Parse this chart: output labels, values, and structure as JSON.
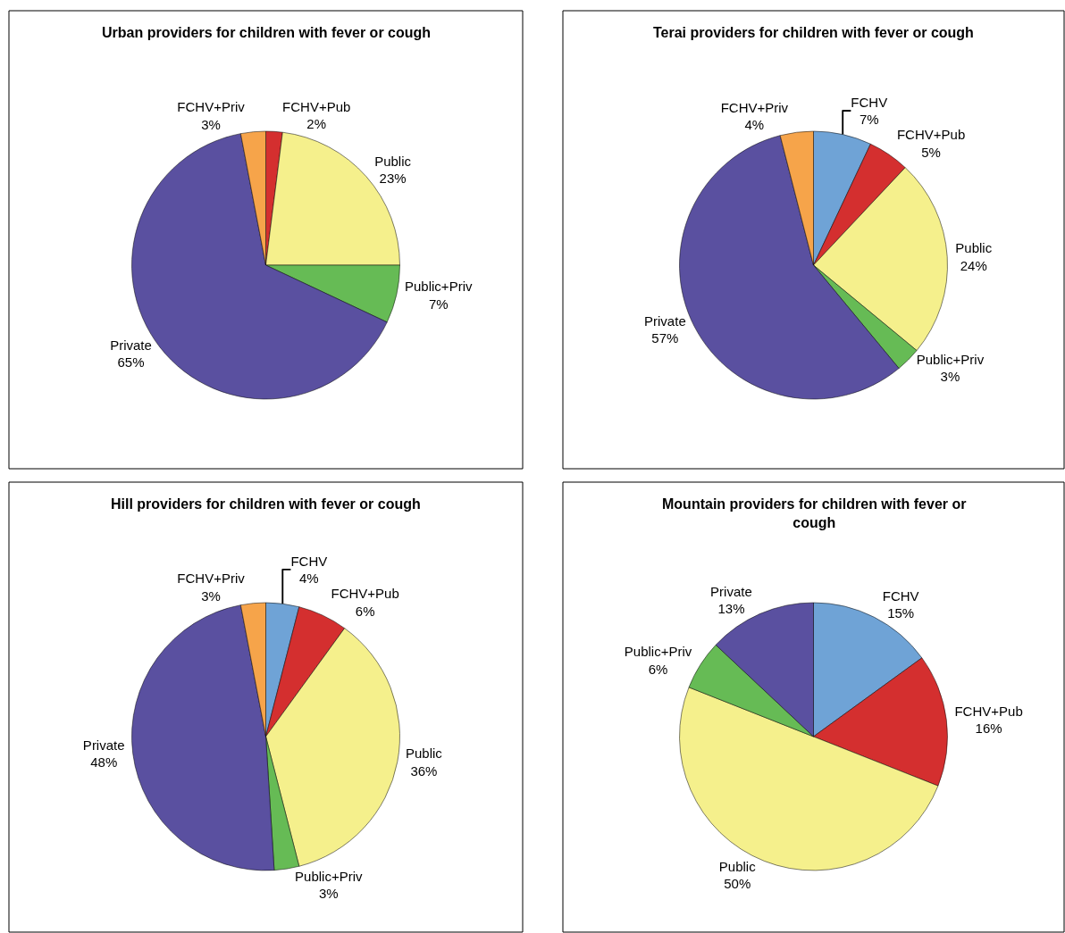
{
  "chart_data": [
    {
      "type": "pie",
      "title": "Urban providers for children with fever or cough",
      "categories": [
        "FCHV+Pub",
        "Public",
        "Public+Priv",
        "Private",
        "FCHV+Priv"
      ],
      "values": [
        2,
        23,
        7,
        65,
        3
      ],
      "value_labels": [
        "2%",
        "23%",
        "7%",
        "65%",
        "3%"
      ],
      "colors": [
        "#d42f2f",
        "#f5f08c",
        "#66bb55",
        "#5a50a0",
        "#f6a44a"
      ],
      "legend": false
    },
    {
      "type": "pie",
      "title": "Terai providers for children with fever or cough",
      "categories": [
        "FCHV",
        "FCHV+Pub",
        "Public",
        "Public+Priv",
        "Private",
        "FCHV+Priv"
      ],
      "values": [
        7,
        5,
        24,
        3,
        57,
        4
      ],
      "value_labels": [
        "7%",
        "5%",
        "24%",
        "3%",
        "57%",
        "4%"
      ],
      "colors": [
        "#6fa3d6",
        "#d42f2f",
        "#f5f08c",
        "#66bb55",
        "#5a50a0",
        "#f6a44a"
      ],
      "legend": false
    },
    {
      "type": "pie",
      "title": "Hill providers for children with fever or cough",
      "categories": [
        "FCHV",
        "FCHV+Pub",
        "Public",
        "Public+Priv",
        "Private",
        "FCHV+Priv"
      ],
      "values": [
        4,
        6,
        36,
        3,
        48,
        3
      ],
      "value_labels": [
        "4%",
        "6%",
        "36%",
        "3%",
        "48%",
        "3%"
      ],
      "colors": [
        "#6fa3d6",
        "#d42f2f",
        "#f5f08c",
        "#66bb55",
        "#5a50a0",
        "#f6a44a"
      ],
      "legend": false
    },
    {
      "type": "pie",
      "title": "Mountain providers for children with fever or cough",
      "categories": [
        "FCHV",
        "FCHV+Pub",
        "Public",
        "Public+Priv",
        "Private"
      ],
      "values": [
        15,
        16,
        50,
        6,
        13
      ],
      "value_labels": [
        "15%",
        "16%",
        "50%",
        "6%",
        "13%"
      ],
      "colors": [
        "#6fa3d6",
        "#d42f2f",
        "#f5f08c",
        "#66bb55",
        "#5a50a0"
      ],
      "legend": false
    }
  ]
}
